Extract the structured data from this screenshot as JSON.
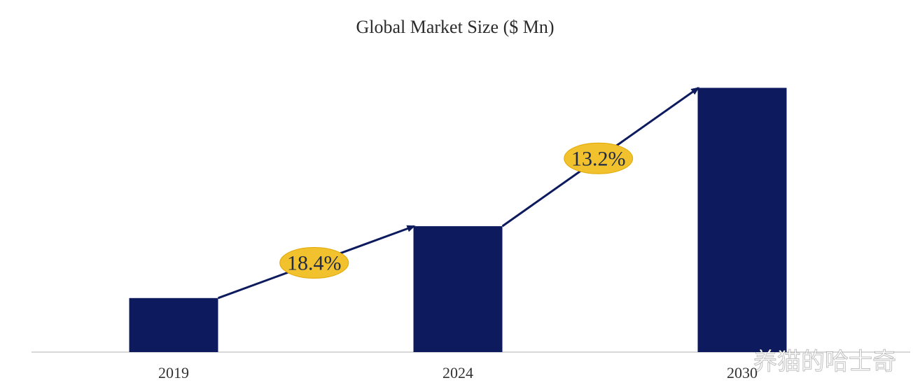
{
  "chart_data": {
    "type": "bar",
    "title": "Global Market Size ($ Mn)",
    "categories": [
      "2019",
      "2024",
      "2030"
    ],
    "values": [
      100,
      233,
      489
    ],
    "ylim": [
      0,
      500
    ],
    "xlabel": "",
    "ylabel": "",
    "grid": false,
    "legend": "none",
    "annotations": [
      {
        "label": "18.4%",
        "from": "2019",
        "to": "2024"
      },
      {
        "label": "13.2%",
        "from": "2024",
        "to": "2030"
      }
    ]
  },
  "colors": {
    "bar": "#0d1b5e",
    "arrow": "#0d1b5e",
    "badge": "#f2c12e",
    "axis": "#cccccc"
  },
  "watermark": "养猫的哈士奇"
}
